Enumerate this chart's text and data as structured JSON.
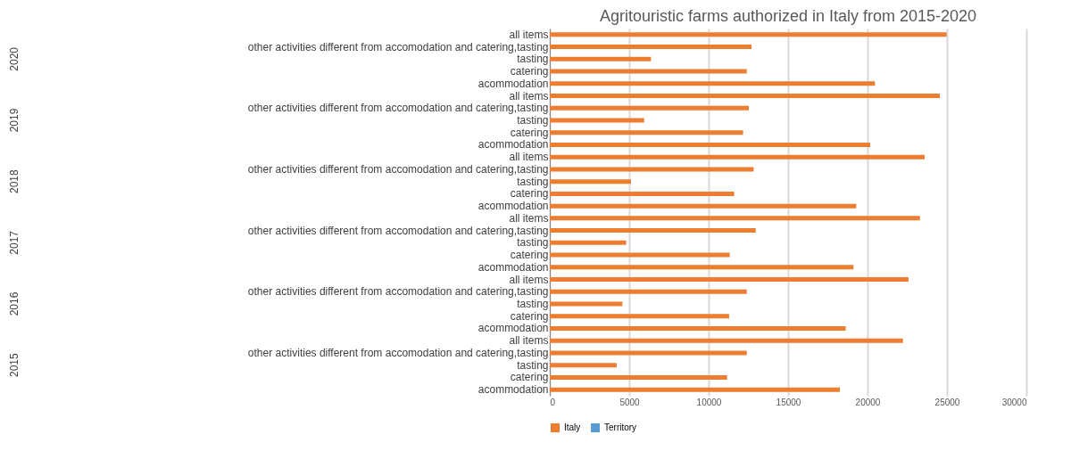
{
  "chart_data": {
    "type": "bar",
    "orientation": "horizontal",
    "title": "Agritouristic farms authorized in Italy from 2015-2020",
    "categories": [
      "all items",
      "other activities different from accomodation and catering,tasting",
      "tasting",
      "catering",
      "acommodation",
      "all items",
      "other activities different from accomodation and catering,tasting",
      "tasting",
      "catering",
      "acommodation",
      "all items",
      "other activities different from accomodation and catering,tasting",
      "tasting",
      "catering",
      "acommodation",
      "all items",
      "other activities different from accomodation and catering,tasting",
      "tasting",
      "catering",
      "acommodation",
      "all items",
      "other activities different from accomodation and catering,tasting",
      "tasting",
      "catering",
      "acommodation",
      "all items",
      "other activities different from accomodation and catering,tasting",
      "tasting",
      "catering",
      "acommodation"
    ],
    "series": [
      {
        "name": "Italy",
        "color": "#ed7d31",
        "values": [
          24980,
          12700,
          6370,
          12400,
          20470,
          24550,
          12530,
          5940,
          12170,
          20170,
          23600,
          12830,
          5110,
          11610,
          19290,
          23300,
          12960,
          4810,
          11330,
          19120,
          22580,
          12400,
          4570,
          11290,
          18630,
          22230,
          12400,
          4210,
          11160,
          18260
        ]
      },
      {
        "name": "Territory",
        "color": "#5b9bd5",
        "values": [
          null,
          null,
          null,
          null,
          null,
          null,
          null,
          null,
          null,
          null,
          null,
          null,
          null,
          null,
          null,
          null,
          null,
          null,
          null,
          null,
          null,
          null,
          null,
          null,
          null,
          null,
          null,
          null,
          null,
          null
        ]
      }
    ],
    "annotations": [
      "2020",
      "2019",
      "2018",
      "2017",
      "2016",
      "2015"
    ],
    "xlim": [
      0,
      30000
    ],
    "xticks": [
      0,
      5000,
      10000,
      15000,
      20000,
      25000,
      30000
    ],
    "grid": "x",
    "legend": "bottom"
  }
}
